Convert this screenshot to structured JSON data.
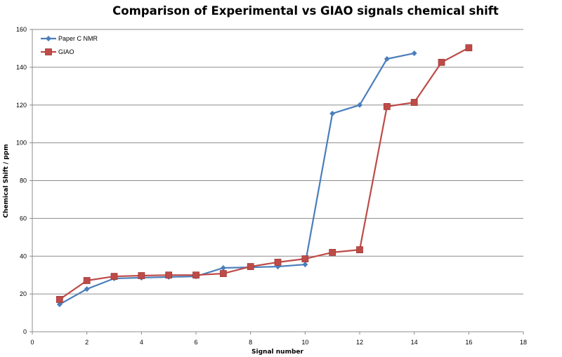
{
  "chart_data": {
    "type": "line",
    "title": "Comparison of Experimental vs GIAO signals chemical shift",
    "xlabel": "Signal number",
    "ylabel": "Chemical Shift  / ppm",
    "xlim": [
      0,
      18
    ],
    "ylim": [
      0,
      160
    ],
    "xticks": [
      0,
      2,
      4,
      6,
      8,
      10,
      12,
      14,
      16,
      18
    ],
    "yticks": [
      0,
      20,
      40,
      60,
      80,
      100,
      120,
      140,
      160
    ],
    "grid": "horizontal",
    "legend_position": "top-left",
    "series": [
      {
        "name": "Paper C NMR",
        "color": "#4a7ebb",
        "marker": "diamond",
        "x": [
          1,
          2,
          3,
          4,
          5,
          6,
          7,
          8,
          9,
          10,
          11,
          12,
          13,
          14
        ],
        "y": [
          14.5,
          22.6,
          28.2,
          28.6,
          29.0,
          29.3,
          33.8,
          34.1,
          34.5,
          35.6,
          115.5,
          120.0,
          144.4,
          147.4
        ]
      },
      {
        "name": "GIAO",
        "color": "#be4b48",
        "marker": "square",
        "x": [
          1,
          2,
          3,
          4,
          5,
          6,
          7,
          8,
          9,
          10,
          11,
          12,
          13,
          14,
          15,
          16
        ],
        "y": [
          17.1,
          27.1,
          29.3,
          29.7,
          30.0,
          30.0,
          30.8,
          34.5,
          36.8,
          38.6,
          42.0,
          43.4,
          119.2,
          121.4,
          142.6,
          150.3
        ]
      }
    ]
  }
}
